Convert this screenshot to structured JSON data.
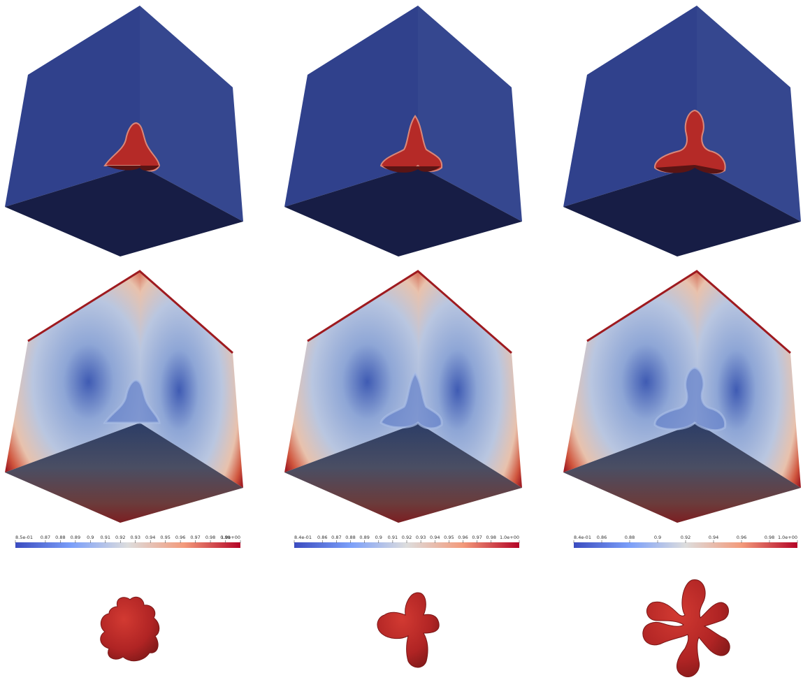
{
  "figure": {
    "rows": [
      "phase_field_cube",
      "concentration_cube",
      "crystal_shape"
    ],
    "columns": 3
  },
  "colors": {
    "cube_face_left": "#31438f",
    "cube_face_right": "#33448e",
    "cube_face_bottom": "#171e45",
    "crystal_red": "#b42424",
    "crystal_dark": "#6e1616",
    "cmap_blue": "#3b4cc0",
    "cmap_white": "#dddddd",
    "cmap_red": "#b40426"
  },
  "colorbars": [
    {
      "min_label": "8.5e-01",
      "max_label": "1.0e+00",
      "min": 0.85,
      "max": 1.0,
      "ticks": [
        "0.87",
        "0.88",
        "0.89",
        "0.9",
        "0.91",
        "0.92",
        "0.93",
        "0.94",
        "0.95",
        "0.96",
        "0.97",
        "0.98",
        "0.99"
      ],
      "tick_values": [
        0.87,
        0.88,
        0.89,
        0.9,
        0.91,
        0.92,
        0.93,
        0.94,
        0.95,
        0.96,
        0.97,
        0.98,
        0.99
      ]
    },
    {
      "min_label": "8.4e-01",
      "max_label": "1.0e+00",
      "min": 0.84,
      "max": 1.0,
      "ticks": [
        "0.86",
        "0.87",
        "0.88",
        "0.89",
        "0.9",
        "0.91",
        "0.92",
        "0.93",
        "0.94",
        "0.95",
        "0.96",
        "0.97",
        "0.98"
      ],
      "tick_values": [
        0.86,
        0.87,
        0.88,
        0.89,
        0.9,
        0.91,
        0.92,
        0.93,
        0.94,
        0.95,
        0.96,
        0.97,
        0.98
      ]
    },
    {
      "min_label": "8.4e-01",
      "max_label": "1.0e+00",
      "min": 0.84,
      "max": 1.0,
      "ticks": [
        "0.86",
        "0.88",
        "0.9",
        "0.92",
        "0.94",
        "0.96",
        "0.98"
      ],
      "tick_values": [
        0.86,
        0.88,
        0.9,
        0.92,
        0.94,
        0.96,
        0.98
      ]
    }
  ]
}
